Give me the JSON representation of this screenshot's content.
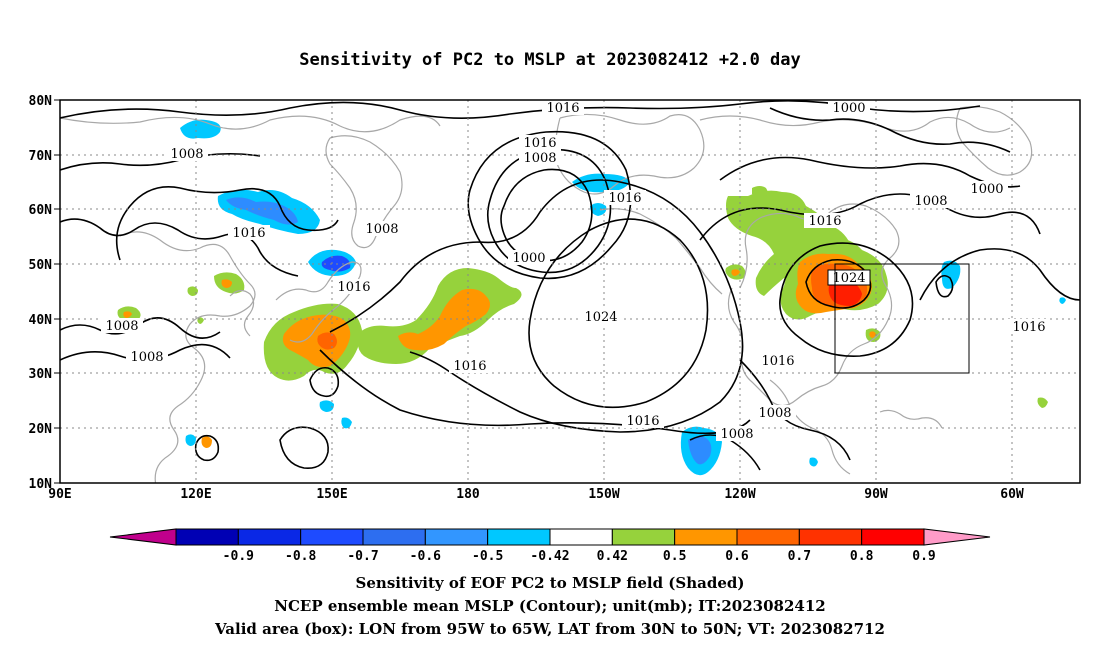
{
  "title": "Sensitivity of PC2 to MSLP at 2023082412 +2.0 day",
  "map": {
    "lat_ticks": [
      "80N",
      "70N",
      "60N",
      "50N",
      "40N",
      "30N",
      "20N",
      "10N"
    ],
    "lon_ticks": [
      "90E",
      "120E",
      "150E",
      "180",
      "150W",
      "120W",
      "90W",
      "60W"
    ],
    "contour_labels": [
      "1016",
      "1000",
      "1016",
      "1008",
      "1008",
      "1000",
      "1016",
      "1016",
      "1008",
      "1016",
      "1008",
      "1016",
      "1000",
      "1008",
      "1016",
      "1024",
      "1008",
      "1008",
      "1016",
      "1016",
      "1008",
      "1016",
      "1024",
      "1016",
      "1008",
      "1008"
    ],
    "valid_box": {
      "lon_west": "95W",
      "lon_east": "65W",
      "lat_south": "30N",
      "lat_north": "50N"
    }
  },
  "colorbar": {
    "labels": [
      "-0.9",
      "-0.8",
      "-0.7",
      "-0.6",
      "-0.5",
      "-0.42",
      "0.42",
      "0.5",
      "0.6",
      "0.7",
      "0.8",
      "0.9"
    ],
    "colors": [
      "#c0008c",
      "#0000b4",
      "#0a28e6",
      "#1e4bff",
      "#2d6ef0",
      "#3296ff",
      "#00c8ff",
      "#ffffff",
      "#96d23c",
      "#ff9600",
      "#ff6400",
      "#ff3200",
      "#ff0000",
      "#ff9bc8"
    ]
  },
  "shading_colors": {
    "pos1": "#96d23c",
    "pos2": "#ff9600",
    "pos3": "#ff6400",
    "pos4": "#ff1e00",
    "neg1": "#00c8ff",
    "neg2": "#2d8cff",
    "neg3": "#1e4bff"
  },
  "captions": [
    "Sensitivity of EOF PC2 to MSLP field (Shaded)",
    "NCEP ensemble mean MSLP (Contour); unit(mb); IT:2023082412",
    "Valid area (box): LON from 95W to 65W, LAT from 30N to 50N; VT: 2023082712"
  ]
}
